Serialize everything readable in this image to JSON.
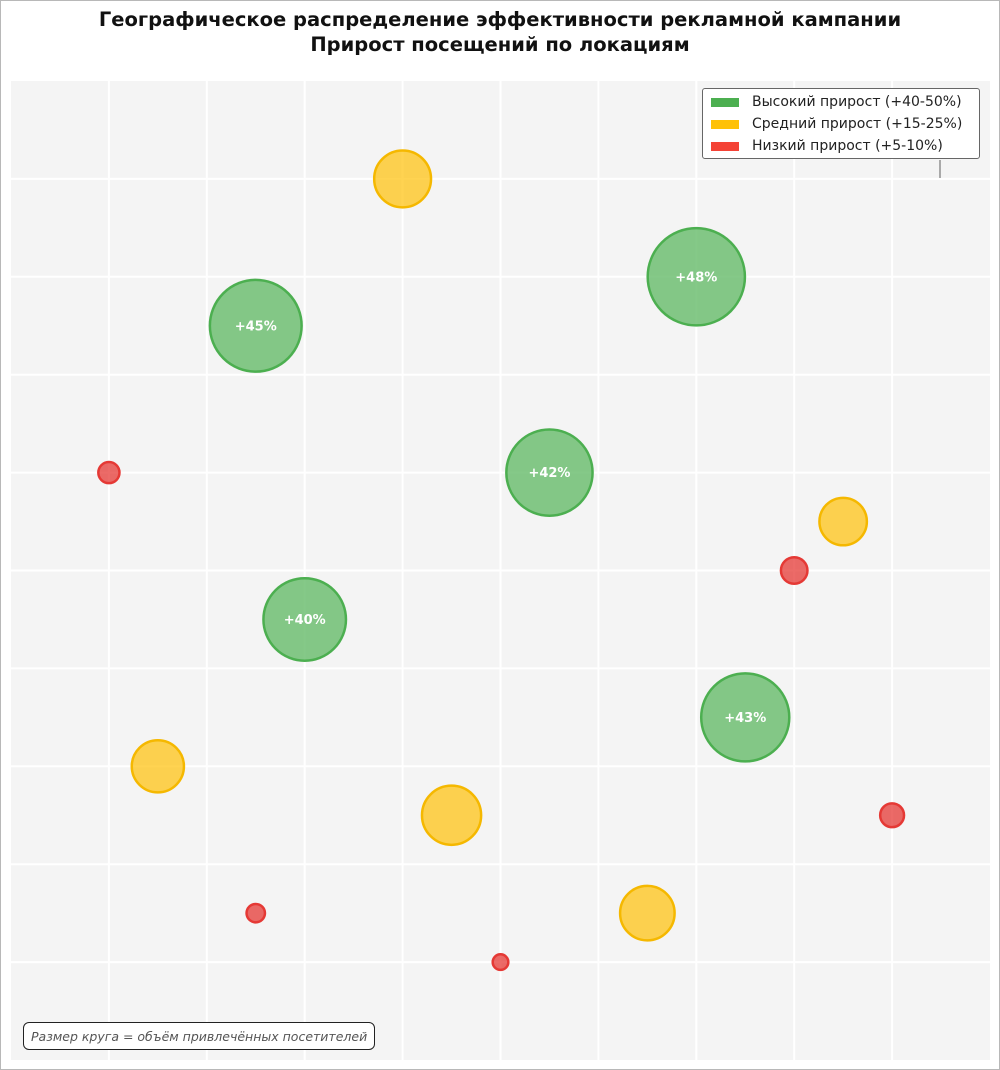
{
  "chart_data": {
    "type": "scatter",
    "title": "Географическое распределение эффективности рекламной кампании",
    "subtitle": "Прирост посещений по локациям",
    "xlabel": "",
    "ylabel": "",
    "xlim": [
      0,
      10
    ],
    "ylim": [
      0,
      10
    ],
    "grid": true,
    "axis_ticks_visible": false,
    "legend_position": "top-right",
    "legend": [
      {
        "key": "high",
        "label": "Высокий прирост (+40-50%)",
        "color": "#4caf50"
      },
      {
        "key": "mid",
        "label": "Средний прирост (+15-25%)",
        "color": "#ffc107"
      },
      {
        "key": "low",
        "label": "Низкий прирост (+5-10%)",
        "color": "#f44336"
      }
    ],
    "series": [
      {
        "name": "Высокий прирост (+40-50%)",
        "key": "high",
        "points": [
          {
            "x": 2.5,
            "y": 7.5,
            "size": 45,
            "label": "+45%"
          },
          {
            "x": 7.0,
            "y": 8.0,
            "size": 48,
            "label": "+48%"
          },
          {
            "x": 5.5,
            "y": 6.0,
            "size": 42,
            "label": "+42%"
          },
          {
            "x": 3.0,
            "y": 4.5,
            "size": 40,
            "label": "+40%"
          },
          {
            "x": 7.5,
            "y": 3.5,
            "size": 43,
            "label": "+43%"
          }
        ]
      },
      {
        "name": "Средний прирост (+15-25%)",
        "key": "mid",
        "points": [
          {
            "x": 4.0,
            "y": 9.0,
            "size": 22
          },
          {
            "x": 8.5,
            "y": 5.5,
            "size": 18
          },
          {
            "x": 1.5,
            "y": 3.0,
            "size": 20
          },
          {
            "x": 4.5,
            "y": 2.5,
            "size": 23
          },
          {
            "x": 6.5,
            "y": 1.5,
            "size": 21
          }
        ]
      },
      {
        "name": "Низкий прирост (+5-10%)",
        "key": "low",
        "points": [
          {
            "x": 1.0,
            "y": 6.0,
            "size": 7
          },
          {
            "x": 8.0,
            "y": 5.0,
            "size": 9
          },
          {
            "x": 9.0,
            "y": 2.5,
            "size": 8
          },
          {
            "x": 2.5,
            "y": 1.5,
            "size": 6
          },
          {
            "x": 5.0,
            "y": 1.0,
            "size": 5
          }
        ]
      }
    ],
    "note": "Размер круга = объём привлечённых посетителей"
  }
}
